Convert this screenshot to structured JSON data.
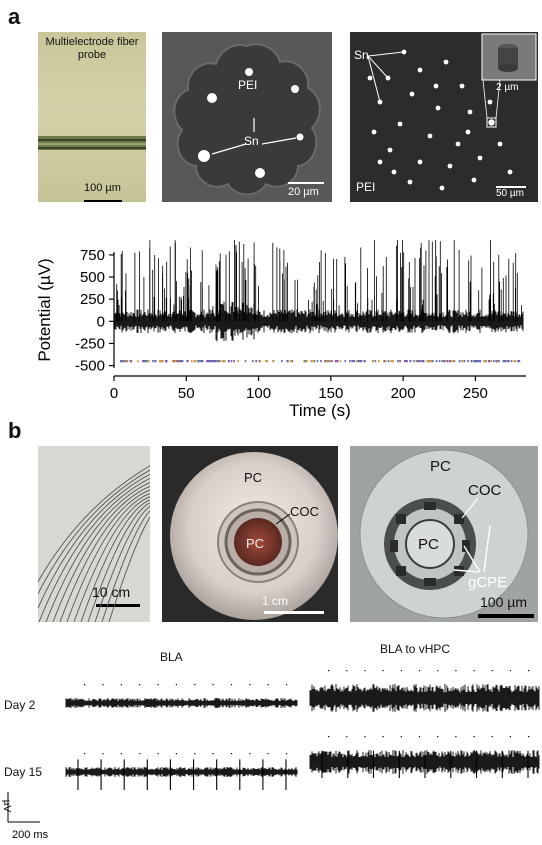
{
  "panel_a": {
    "letter": "a",
    "img1": {
      "title": "Multielectrode fiber probe",
      "scale": "100 µm"
    },
    "img2": {
      "pei": "PEI",
      "sn": "Sn",
      "scale": "20 µm"
    },
    "img3": {
      "sn": "Sn",
      "pei": "PEI",
      "inset_scale": "2 µm",
      "scale": "50 µm"
    }
  },
  "chart_data": {
    "type": "line",
    "ylabel": "Potential (µV)",
    "xlabel": "Time (s)",
    "x_ticks": [
      "0",
      "50",
      "100",
      "150",
      "200",
      "250"
    ],
    "y_ticks": [
      "750",
      "500",
      "250",
      "0",
      "-250",
      "-500"
    ],
    "xlim": [
      0,
      285
    ],
    "ylim": [
      -550,
      760
    ]
  },
  "panel_b": {
    "letter": "b",
    "img1": {
      "scale": "10 cm"
    },
    "img2": {
      "pc_top": "PC",
      "pc_center": "PC",
      "coc": "COC",
      "scale": "1 cm"
    },
    "img3": {
      "pc_top": "PC",
      "pc_center": "PC",
      "coc": "COC",
      "gcpe": "gCPE",
      "scale": "100 µm"
    },
    "traces": {
      "col1": "BLA",
      "col2": "BLA to vHPC",
      "row1": "Day 2",
      "row2": "Day 15",
      "time_scale": "200 ms",
      "voltage_scale": "µV"
    }
  }
}
